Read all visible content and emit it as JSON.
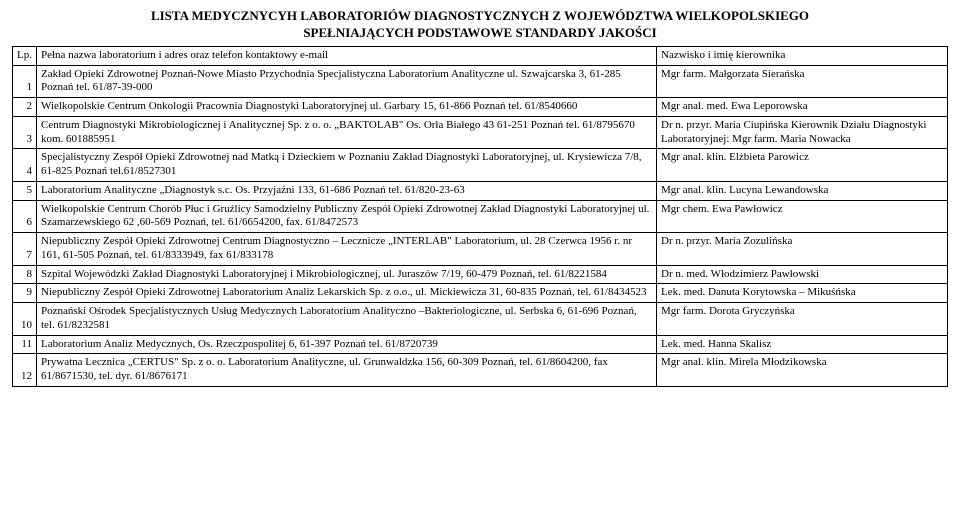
{
  "title_line1": "LISTA MEDYCZNYCYH LABORATORIÓW DIAGNOSTYCZNYCH Z WOJEWÓDZTWA WIELKOPOLSKIEGO",
  "title_line2": "SPEŁNIAJĄCYCH PODSTAWOWE STANDARDY JAKOŚCI",
  "columns": {
    "lp": "Lp.",
    "name": "Pełna nazwa laboratorium i adres oraz telefon kontaktowy e-mail",
    "head": "Nazwisko i imię kierownika"
  },
  "rows": [
    {
      "lp": "1",
      "name": "Zakład Opieki Zdrowotnej Poznań-Nowe Miasto Przychodnia Specjalistyczna Laboratorium Analityczne ul. Szwajcarska 3, 61-285 Poznań tel. 61/87-39-000",
      "head": "Mgr farm. Małgorzata Sierańska"
    },
    {
      "lp": "2",
      "name": "Wielkopolskie Centrum Onkologii Pracownia Diagnostyki Laboratoryjnej ul. Garbary 15, 61-866 Poznań tel. 61/8540660",
      "head": "Mgr anal. med. Ewa Leporowska"
    },
    {
      "lp": "3",
      "name": "Centrum Diagnostyki Mikrobiologicznej i Analitycznej Sp. z o. o. „BAKTOLAB\" Os. Orła Białego 43 61-251 Poznań tel. 61/8795670 kom. 601885951",
      "head": "Dr n. przyr. Maria Ciupińska Kierownik Działu Diagnostyki Laboratoryjnej: Mgr farm. Maria Nowacka"
    },
    {
      "lp": "4",
      "name": "Specjalistyczny Zespół Opieki Zdrowotnej nad Matką i Dzieckiem w Poznaniu Zakład Diagnostyki Laboratoryjnej, ul. Krysiewicza 7/8, 61-825 Poznań tel.61/8527301",
      "head": "Mgr anal. klin. Elżbieta Parowicz"
    },
    {
      "lp": "5",
      "name": "Laboratorium Analityczne „Diagnostyk s.c. Os. Przyjaźni 133, 61-686 Poznań tel. 61/820-23-63",
      "head": "Mgr anal. klin. Lucyna Lewandowska"
    },
    {
      "lp": "6",
      "name": "Wielkopolskie Centrum Chorób Płuc i Gruźlicy Samodzielny Publiczny Zespół Opieki Zdrowotnej Zakład Diagnostyki Laboratoryjnej ul. Szamarzewskiego 62 ,60-569 Poznań, tel. 61/6654200, fax. 61/8472573",
      "head": "Mgr chem. Ewa Pawłowicz"
    },
    {
      "lp": "7",
      "name": "Niepubliczny Zespół Opieki Zdrowotnej Centrum Diagnostyczno – Lecznicze „INTERLAB\" Laboratorium, ul. 28 Czerwca 1956 r. nr 161, 61-505 Poznań, tel. 61/8333949, fax 61/833178",
      "head": "Dr n. przyr. Maria Zozulińska"
    },
    {
      "lp": "8",
      "name": "Szpital Wojewódzki Zakład Diagnostyki Laboratoryjnej i Mikrobiologicznej, ul. Juraszów 7/19, 60-479 Poznań, tel. 61/8221584",
      "head": "Dr n. med. Włodzimierz Pawłowski"
    },
    {
      "lp": "9",
      "name": "Niepubliczny Zespół Opieki Zdrowotnej Laboratorium Analiz Lekarskich Sp. z o.o., ul. Mickiewicza 31, 60-835 Poznań, tel. 61/8434523",
      "head": "Lek. med. Danuta Korytowska – Mikuśńska"
    },
    {
      "lp": "10",
      "name": "Poznański Ośrodek Specjalistycznych Usług Medycznych Laboratorium Analityczno –Bakteriologiczne, ul. Serbska 6, 61-696 Poznań, tel. 61/8232581",
      "head": "Mgr farm. Dorota Gryczyńska"
    },
    {
      "lp": "11",
      "name": "Laboratorium Analiz Medycznych, Os. Rzeczpospolitej 6, 61-397 Poznań tel. 61/8720739",
      "head": "Lek. med. Hanna Skalisz"
    },
    {
      "lp": "12",
      "name": "Prywatna Lecznica „CERTUS\" Sp. z o. o. Laboratorium Analityczne, ul. Grunwaldzka 156, 60-309 Poznań, tel. 61/8604200, fax 61/8671530, tel. dyr. 61/8676171",
      "head": "Mgr anal. klin. Mirela Młodzikowska"
    }
  ]
}
